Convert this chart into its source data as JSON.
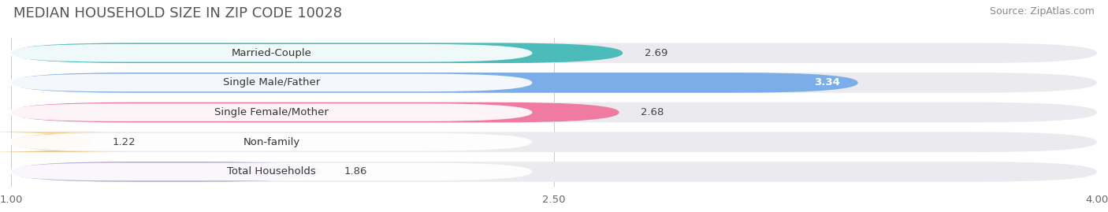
{
  "title": "MEDIAN HOUSEHOLD SIZE IN ZIP CODE 10028",
  "source": "Source: ZipAtlas.com",
  "categories": [
    "Married-Couple",
    "Single Male/Father",
    "Single Female/Mother",
    "Non-family",
    "Total Households"
  ],
  "values": [
    2.69,
    3.34,
    2.68,
    1.22,
    1.86
  ],
  "bar_colors": [
    "#4CBCBA",
    "#7BAEE8",
    "#F07BA0",
    "#F5C98A",
    "#B9A8D5"
  ],
  "bar_bg_color": "#EAEAEF",
  "value_label_inside": [
    false,
    true,
    false,
    false,
    false
  ],
  "xlim_left": 1.0,
  "xlim_right": 4.0,
  "xticks": [
    1.0,
    2.5,
    4.0
  ],
  "background_color": "#FFFFFF",
  "plot_bg_color": "#F7F7FB",
  "title_fontsize": 13,
  "source_fontsize": 9,
  "label_fontsize": 9.5,
  "value_fontsize": 9.5
}
